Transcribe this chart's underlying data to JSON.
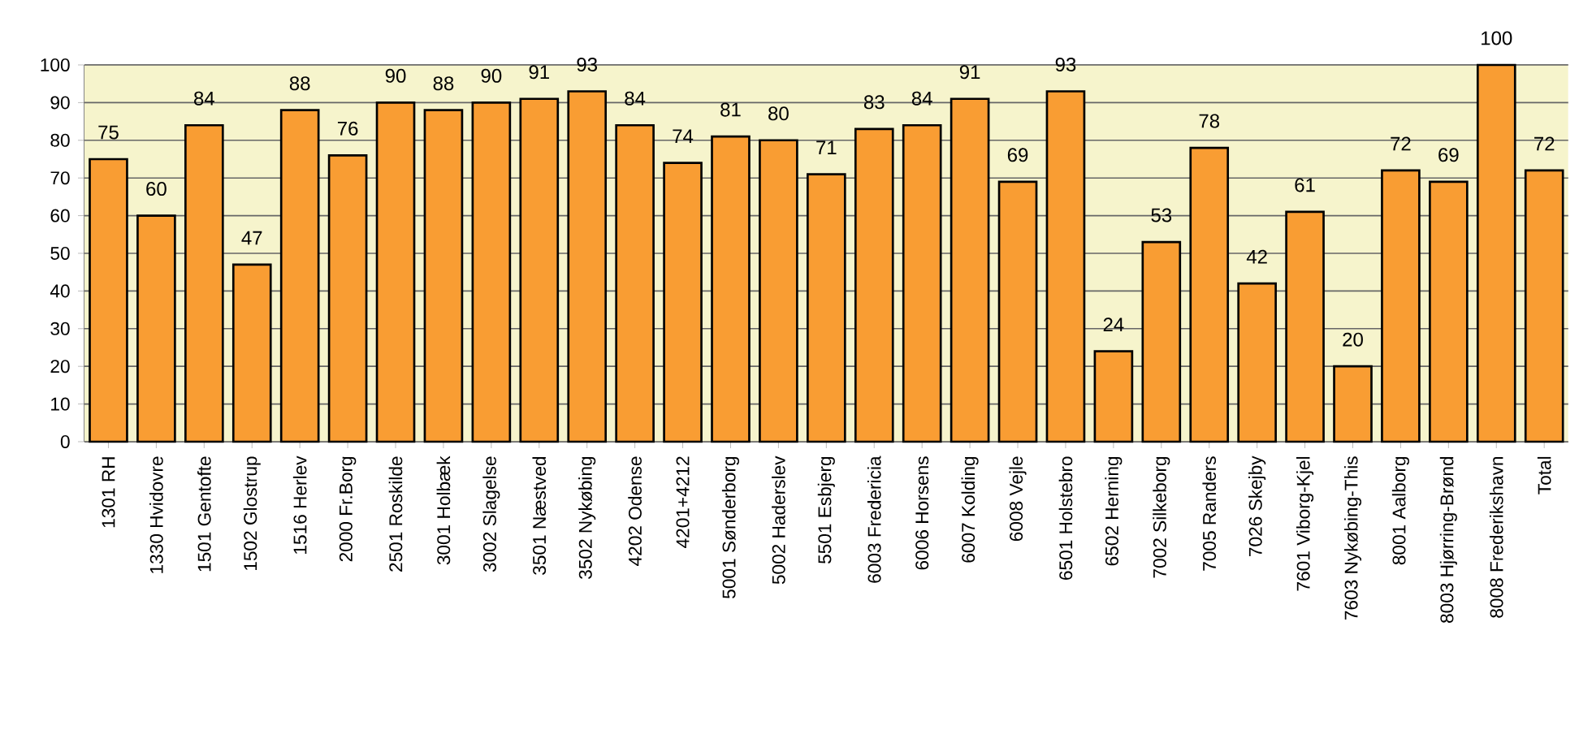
{
  "chart_data": {
    "type": "bar",
    "categories": [
      "1301 RH",
      "1330 Hvidovre",
      "1501 Gentofte",
      "1502 Glostrup",
      "1516 Herlev",
      "2000 Fr.Borg",
      "2501 Roskilde",
      "3001 Holbæk",
      "3002 Slagelse",
      "3501 Næstved",
      "3502 Nykøbing",
      "4202 Odense",
      "4201+4212",
      "5001 Sønderborg",
      "5002 Haderslev",
      "5501 Esbjerg",
      "6003 Fredericia",
      "6006 Horsens",
      "6007 Kolding",
      "6008 Vejle",
      "6501 Holstebro",
      "6502 Herning",
      "7002 Silkeborg",
      "7005 Randers",
      "7026 Skejby",
      "7601 Viborg-Kjel",
      "7603 Nykøbing-This",
      "8001 Aalborg",
      "8003 Hjørring-Brønd",
      "8008 Frederikshavn",
      "Total"
    ],
    "values": [
      75,
      60,
      84,
      47,
      88,
      76,
      90,
      88,
      90,
      91,
      93,
      84,
      74,
      81,
      80,
      71,
      83,
      84,
      91,
      69,
      93,
      24,
      53,
      78,
      42,
      61,
      20,
      72,
      69,
      100,
      72
    ],
    "color": "#f99d33",
    "ylim": [
      0,
      100
    ],
    "yticks": [
      0,
      10,
      20,
      30,
      40,
      50,
      60,
      70,
      80,
      90,
      100
    ],
    "bands": [
      {
        "axis": "y",
        "from": 0,
        "to": 100,
        "color": "#f6f4cc"
      }
    ],
    "grid": "y",
    "data_labels": true
  }
}
